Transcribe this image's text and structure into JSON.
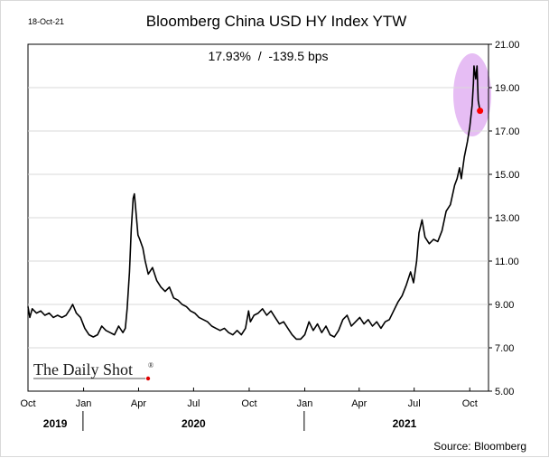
{
  "chart_data": {
    "type": "line",
    "title": "Bloomberg China USD HY Index YTW",
    "subtitle": "17.93%  /  -139.5 bps",
    "date_stamp": "18-Oct-21",
    "source": "Source: Bloomberg",
    "logo_text": "The Daily Shot",
    "logo_mark": "®",
    "ylim": [
      5,
      21
    ],
    "y_ticks": [
      "5.00",
      "7.00",
      "9.00",
      "11.00",
      "13.00",
      "15.00",
      "17.00",
      "19.00",
      "21.00"
    ],
    "y_tick_values": [
      5,
      7,
      9,
      11,
      13,
      15,
      17,
      19,
      21
    ],
    "xlim": [
      "2019-10-01",
      "2021-11-01"
    ],
    "x_ticks": [
      {
        "label": "Oct",
        "date": "2019-10-01"
      },
      {
        "label": "Jan",
        "date": "2020-01-01"
      },
      {
        "label": "Apr",
        "date": "2020-04-01"
      },
      {
        "label": "Jul",
        "date": "2020-07-01"
      },
      {
        "label": "Oct",
        "date": "2020-10-01"
      },
      {
        "label": "Jan",
        "date": "2021-01-01"
      },
      {
        "label": "Apr",
        "date": "2021-04-01"
      },
      {
        "label": "Jul",
        "date": "2021-07-01"
      },
      {
        "label": "Oct",
        "date": "2021-10-01"
      }
    ],
    "years": [
      {
        "label": "2019",
        "date": "2019-11-15"
      },
      {
        "label": "2020",
        "date": "2020-07-01"
      },
      {
        "label": "2021",
        "date": "2021-06-15"
      }
    ],
    "year_separators": [
      "2019-12-31",
      "2020-12-31"
    ],
    "series": [
      {
        "color": "#000000",
        "points": [
          [
            "2019-10-01",
            8.9
          ],
          [
            "2019-10-04",
            8.4
          ],
          [
            "2019-10-08",
            8.8
          ],
          [
            "2019-10-15",
            8.6
          ],
          [
            "2019-10-22",
            8.7
          ],
          [
            "2019-10-29",
            8.5
          ],
          [
            "2019-11-05",
            8.6
          ],
          [
            "2019-11-12",
            8.4
          ],
          [
            "2019-11-19",
            8.5
          ],
          [
            "2019-11-26",
            8.4
          ],
          [
            "2019-12-03",
            8.5
          ],
          [
            "2019-12-10",
            8.8
          ],
          [
            "2019-12-14",
            9.0
          ],
          [
            "2019-12-20",
            8.6
          ],
          [
            "2019-12-27",
            8.4
          ],
          [
            "2020-01-03",
            7.9
          ],
          [
            "2020-01-10",
            7.6
          ],
          [
            "2020-01-17",
            7.5
          ],
          [
            "2020-01-24",
            7.6
          ],
          [
            "2020-01-31",
            8.0
          ],
          [
            "2020-02-07",
            7.8
          ],
          [
            "2020-02-14",
            7.7
          ],
          [
            "2020-02-21",
            7.6
          ],
          [
            "2020-02-28",
            8.0
          ],
          [
            "2020-03-06",
            7.7
          ],
          [
            "2020-03-10",
            7.9
          ],
          [
            "2020-03-13",
            8.8
          ],
          [
            "2020-03-17",
            10.5
          ],
          [
            "2020-03-20",
            12.5
          ],
          [
            "2020-03-23",
            13.9
          ],
          [
            "2020-03-25",
            14.1
          ],
          [
            "2020-03-27",
            13.5
          ],
          [
            "2020-03-31",
            12.2
          ],
          [
            "2020-04-03",
            12.0
          ],
          [
            "2020-04-08",
            11.6
          ],
          [
            "2020-04-12",
            11.0
          ],
          [
            "2020-04-17",
            10.4
          ],
          [
            "2020-04-24",
            10.7
          ],
          [
            "2020-05-01",
            10.1
          ],
          [
            "2020-05-08",
            9.8
          ],
          [
            "2020-05-15",
            9.6
          ],
          [
            "2020-05-22",
            9.8
          ],
          [
            "2020-05-29",
            9.3
          ],
          [
            "2020-06-05",
            9.2
          ],
          [
            "2020-06-12",
            9.0
          ],
          [
            "2020-06-19",
            8.9
          ],
          [
            "2020-06-26",
            8.7
          ],
          [
            "2020-07-03",
            8.6
          ],
          [
            "2020-07-10",
            8.4
          ],
          [
            "2020-07-17",
            8.3
          ],
          [
            "2020-07-24",
            8.2
          ],
          [
            "2020-07-31",
            8.0
          ],
          [
            "2020-08-07",
            7.9
          ],
          [
            "2020-08-14",
            7.8
          ],
          [
            "2020-08-21",
            7.9
          ],
          [
            "2020-08-28",
            7.7
          ],
          [
            "2020-09-04",
            7.6
          ],
          [
            "2020-09-11",
            7.8
          ],
          [
            "2020-09-18",
            7.6
          ],
          [
            "2020-09-25",
            7.9
          ],
          [
            "2020-09-30",
            8.7
          ],
          [
            "2020-10-03",
            8.2
          ],
          [
            "2020-10-09",
            8.5
          ],
          [
            "2020-10-16",
            8.6
          ],
          [
            "2020-10-23",
            8.8
          ],
          [
            "2020-10-30",
            8.5
          ],
          [
            "2020-11-06",
            8.7
          ],
          [
            "2020-11-13",
            8.4
          ],
          [
            "2020-11-20",
            8.1
          ],
          [
            "2020-11-27",
            8.2
          ],
          [
            "2020-12-04",
            7.9
          ],
          [
            "2020-12-11",
            7.6
          ],
          [
            "2020-12-18",
            7.4
          ],
          [
            "2020-12-25",
            7.4
          ],
          [
            "2021-01-01",
            7.6
          ],
          [
            "2021-01-08",
            8.2
          ],
          [
            "2021-01-15",
            7.8
          ],
          [
            "2021-01-22",
            8.1
          ],
          [
            "2021-01-29",
            7.7
          ],
          [
            "2021-02-05",
            8.0
          ],
          [
            "2021-02-12",
            7.6
          ],
          [
            "2021-02-19",
            7.5
          ],
          [
            "2021-02-26",
            7.8
          ],
          [
            "2021-03-05",
            8.3
          ],
          [
            "2021-03-12",
            8.5
          ],
          [
            "2021-03-19",
            8.0
          ],
          [
            "2021-03-26",
            8.2
          ],
          [
            "2021-04-02",
            8.4
          ],
          [
            "2021-04-09",
            8.1
          ],
          [
            "2021-04-16",
            8.3
          ],
          [
            "2021-04-23",
            8.0
          ],
          [
            "2021-04-30",
            8.2
          ],
          [
            "2021-05-07",
            7.9
          ],
          [
            "2021-05-14",
            8.2
          ],
          [
            "2021-05-21",
            8.3
          ],
          [
            "2021-05-28",
            8.7
          ],
          [
            "2021-06-04",
            9.1
          ],
          [
            "2021-06-11",
            9.4
          ],
          [
            "2021-06-18",
            9.9
          ],
          [
            "2021-06-25",
            10.5
          ],
          [
            "2021-06-30",
            10.0
          ],
          [
            "2021-07-05",
            11.0
          ],
          [
            "2021-07-09",
            12.3
          ],
          [
            "2021-07-14",
            12.9
          ],
          [
            "2021-07-19",
            12.1
          ],
          [
            "2021-07-26",
            11.8
          ],
          [
            "2021-08-02",
            12.0
          ],
          [
            "2021-08-09",
            11.9
          ],
          [
            "2021-08-16",
            12.4
          ],
          [
            "2021-08-23",
            13.3
          ],
          [
            "2021-08-30",
            13.6
          ],
          [
            "2021-09-06",
            14.5
          ],
          [
            "2021-09-10",
            14.8
          ],
          [
            "2021-09-14",
            15.3
          ],
          [
            "2021-09-17",
            14.8
          ],
          [
            "2021-09-22",
            15.8
          ],
          [
            "2021-09-27",
            16.5
          ],
          [
            "2021-10-01",
            17.2
          ],
          [
            "2021-10-05",
            18.2
          ],
          [
            "2021-10-07",
            19.2
          ],
          [
            "2021-10-08",
            20.0
          ],
          [
            "2021-10-11",
            19.4
          ],
          [
            "2021-10-13",
            20.0
          ],
          [
            "2021-10-15",
            18.4
          ],
          [
            "2021-10-18",
            17.93
          ]
        ]
      }
    ],
    "last_point": {
      "date": "2021-10-18",
      "value": 17.93,
      "color": "#ff0000"
    },
    "highlight_color": "#dda7f0"
  }
}
